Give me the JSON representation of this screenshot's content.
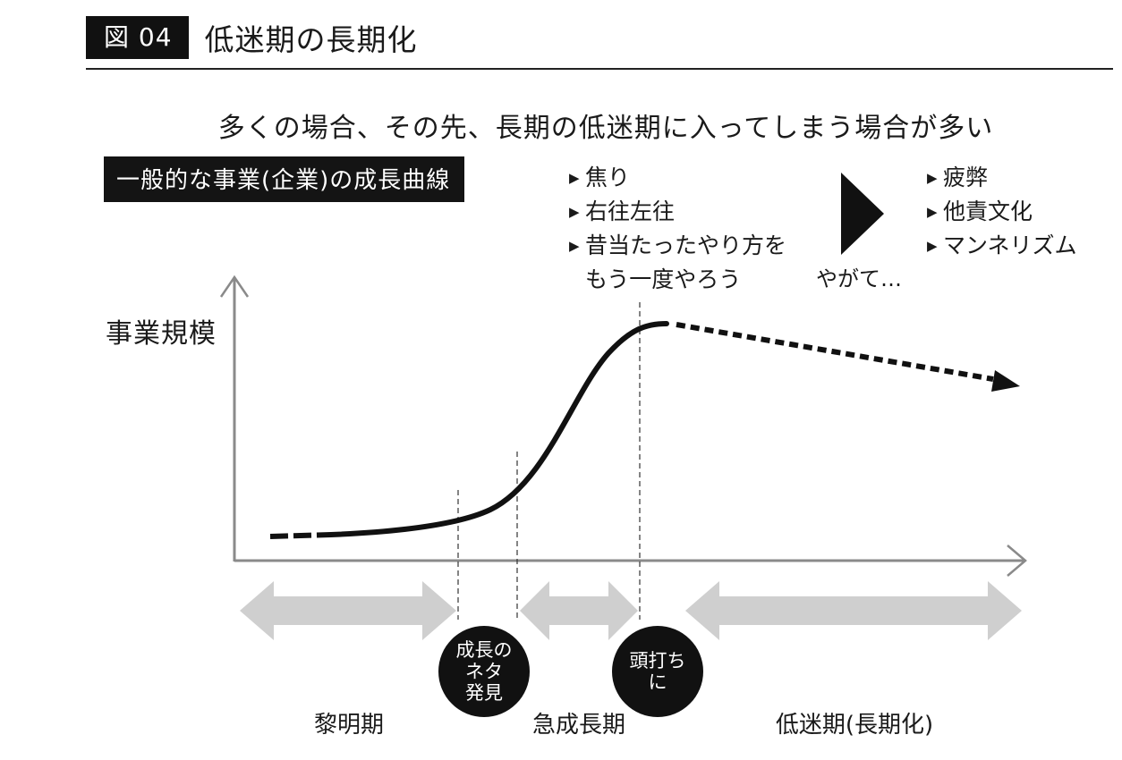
{
  "header": {
    "badge": "図 04",
    "title": "低迷期の長期化"
  },
  "headline": "多くの場合、その先、長期の低迷期に入ってしまう場合が多い",
  "curve_label": "一般的な事業(企業)の成長曲線",
  "y_axis_label": "事業規模",
  "symptoms_before": {
    "items": [
      "焦り",
      "右往左往",
      "昔当たったやり方を"
    ],
    "continuation": "もう一度やろう"
  },
  "transition_text": "やがて…",
  "symptoms_after": {
    "items": [
      "疲弊",
      "他責文化",
      "マンネリズム"
    ]
  },
  "markers": [
    {
      "id": "seed",
      "lines": [
        "成長の",
        "ネタ",
        "発見"
      ]
    },
    {
      "id": "peak",
      "lines": [
        "頭打ち",
        "に"
      ]
    }
  ],
  "phases": [
    "黎明期",
    "急成長期",
    "低迷期(長期化)"
  ],
  "colors": {
    "ink": "#111111",
    "arrow_gray": "#cfcfcf",
    "axis_gray": "#888888"
  }
}
